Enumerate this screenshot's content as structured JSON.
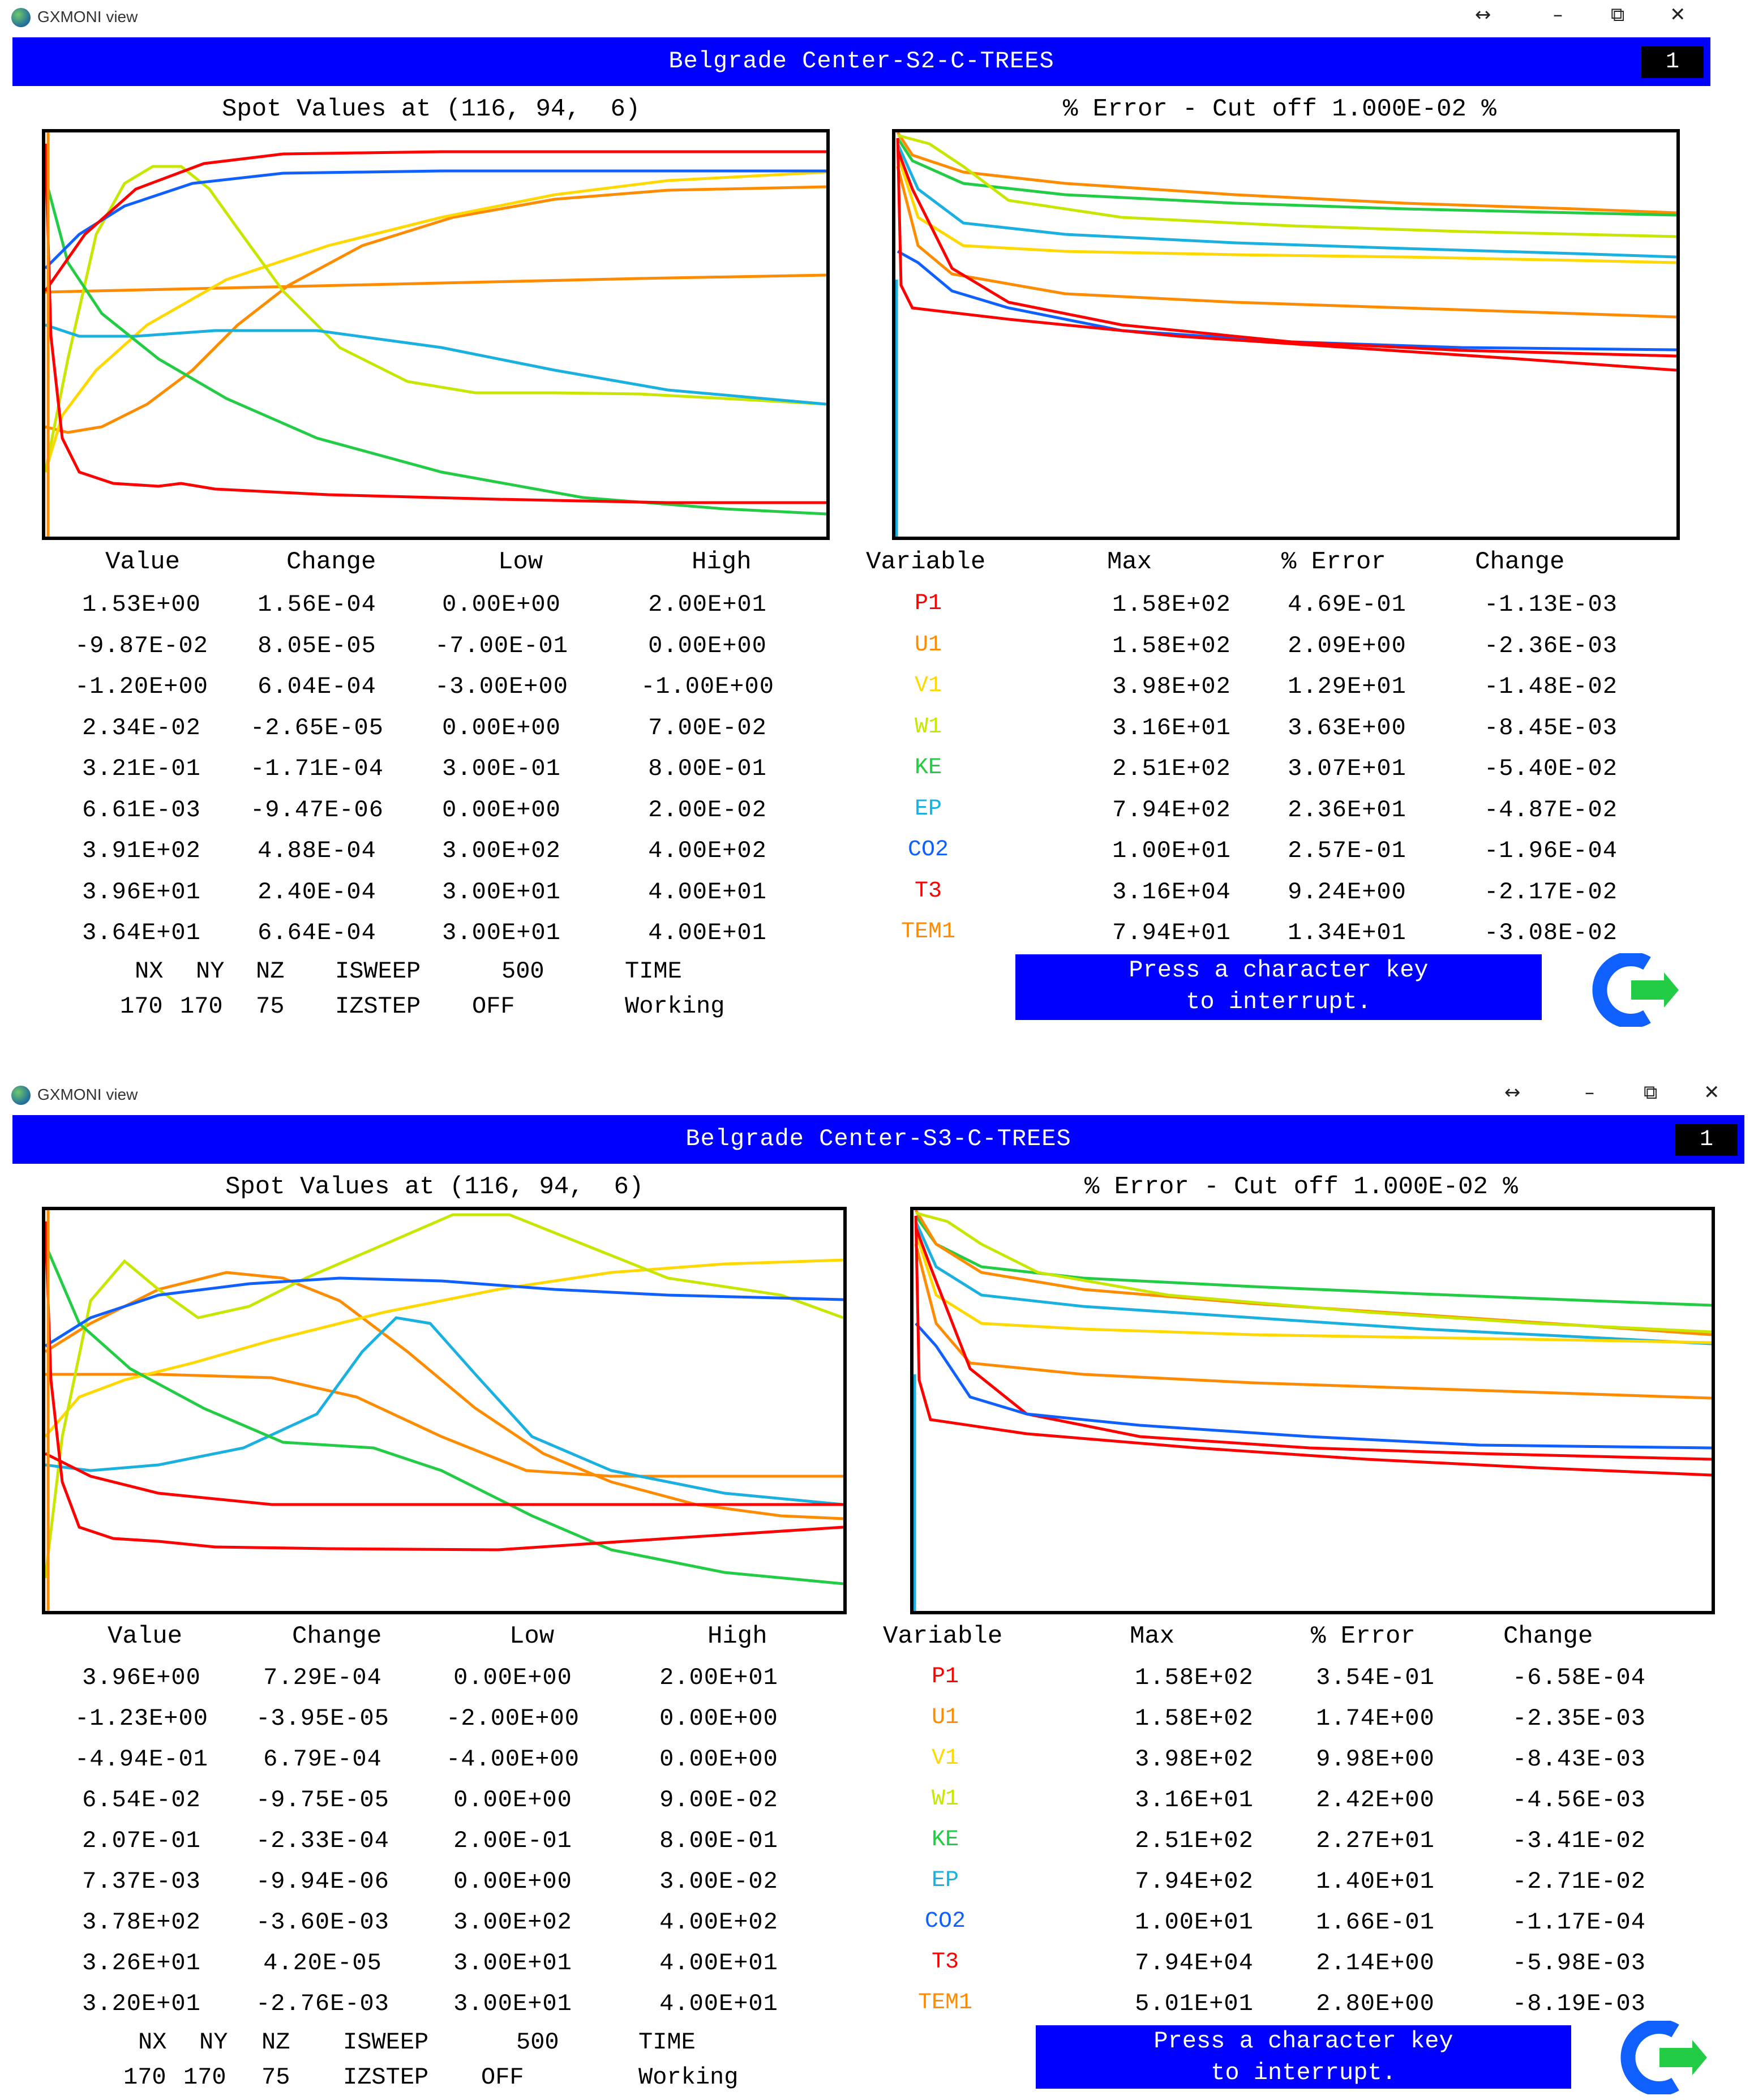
{
  "windows": [
    {
      "app_title": "GXMONI view",
      "controls": {
        "resize": "↔",
        "minimize": "–",
        "restore": "⧉",
        "close": "✕"
      },
      "banner": {
        "title": "Belgrade Center-S2-C-TREES",
        "badge": "1"
      },
      "left_plot_title": "Spot Values at (116, 94,  6)",
      "right_plot_title": "% Error - Cut off 1.000E-02 %",
      "left_headers": [
        "Value",
        "Change",
        "Low",
        "High"
      ],
      "right_headers": [
        "Variable",
        "Max",
        "% Error",
        "Change"
      ],
      "rows": [
        {
          "value": "1.53E+00",
          "change": "1.56E-04",
          "low": "0.00E+00",
          "high": "2.00E+01",
          "var": "P1",
          "max": "1.58E+02",
          "err": "4.69E-01",
          "echange": "-1.13E-03"
        },
        {
          "value": "-9.87E-02",
          "change": "8.05E-05",
          "low": "-7.00E-01",
          "high": "0.00E+00",
          "var": "U1",
          "max": "1.58E+02",
          "err": "2.09E+00",
          "echange": "-2.36E-03"
        },
        {
          "value": "-1.20E+00",
          "change": "6.04E-04",
          "low": "-3.00E+00",
          "high": "-1.00E+00",
          "var": "V1",
          "max": "3.98E+02",
          "err": "1.29E+01",
          "echange": "-1.48E-02"
        },
        {
          "value": "2.34E-02",
          "change": "-2.65E-05",
          "low": "0.00E+00",
          "high": "7.00E-02",
          "var": "W1",
          "max": "3.16E+01",
          "err": "3.63E+00",
          "echange": "-8.45E-03"
        },
        {
          "value": "3.21E-01",
          "change": "-1.71E-04",
          "low": "3.00E-01",
          "high": "8.00E-01",
          "var": "KE",
          "max": "2.51E+02",
          "err": "3.07E+01",
          "echange": "-5.40E-02"
        },
        {
          "value": "6.61E-03",
          "change": "-9.47E-06",
          "low": "0.00E+00",
          "high": "2.00E-02",
          "var": "EP",
          "max": "7.94E+02",
          "err": "2.36E+01",
          "echange": "-4.87E-02"
        },
        {
          "value": "3.91E+02",
          "change": "4.88E-04",
          "low": "3.00E+02",
          "high": "4.00E+02",
          "var": "CO2",
          "max": "1.00E+01",
          "err": "2.57E-01",
          "echange": "-1.96E-04"
        },
        {
          "value": "3.96E+01",
          "change": "2.40E-04",
          "low": "3.00E+01",
          "high": "4.00E+01",
          "var": "T3",
          "max": "3.16E+04",
          "err": "9.24E+00",
          "echange": "-2.17E-02"
        },
        {
          "value": "3.64E+01",
          "change": "6.64E-04",
          "low": "3.00E+01",
          "high": "4.00E+01",
          "var": "TEM1",
          "max": "7.94E+01",
          "err": "1.34E+01",
          "echange": "-3.08E-02"
        }
      ],
      "footer": {
        "labels": [
          "NX",
          "NY",
          "NZ",
          "ISWEEP",
          "500",
          "TIME"
        ],
        "values": [
          "170",
          "170",
          "75",
          "IZSTEP",
          "OFF",
          "Working"
        ]
      },
      "press": [
        "Press a character key",
        "to interrupt."
      ]
    },
    {
      "app_title": "GXMONI view",
      "controls": {
        "resize": "↔",
        "minimize": "–",
        "restore": "⧉",
        "close": "✕"
      },
      "banner": {
        "title": "Belgrade Center-S3-C-TREES",
        "badge": "1"
      },
      "left_plot_title": "Spot Values at (116, 94,  6)",
      "right_plot_title": "% Error - Cut off 1.000E-02 %",
      "left_headers": [
        "Value",
        "Change",
        "Low",
        "High"
      ],
      "right_headers": [
        "Variable",
        "Max",
        "% Error",
        "Change"
      ],
      "rows": [
        {
          "value": "3.96E+00",
          "change": "7.29E-04",
          "low": "0.00E+00",
          "high": "2.00E+01",
          "var": "P1",
          "max": "1.58E+02",
          "err": "3.54E-01",
          "echange": "-6.58E-04"
        },
        {
          "value": "-1.23E+00",
          "change": "-3.95E-05",
          "low": "-2.00E+00",
          "high": "0.00E+00",
          "var": "U1",
          "max": "1.58E+02",
          "err": "1.74E+00",
          "echange": "-2.35E-03"
        },
        {
          "value": "-4.94E-01",
          "change": "6.79E-04",
          "low": "-4.00E+00",
          "high": "0.00E+00",
          "var": "V1",
          "max": "3.98E+02",
          "err": "9.98E+00",
          "echange": "-8.43E-03"
        },
        {
          "value": "6.54E-02",
          "change": "-9.75E-05",
          "low": "0.00E+00",
          "high": "9.00E-02",
          "var": "W1",
          "max": "3.16E+01",
          "err": "2.42E+00",
          "echange": "-4.56E-03"
        },
        {
          "value": "2.07E-01",
          "change": "-2.33E-04",
          "low": "2.00E-01",
          "high": "8.00E-01",
          "var": "KE",
          "max": "2.51E+02",
          "err": "2.27E+01",
          "echange": "-3.41E-02"
        },
        {
          "value": "7.37E-03",
          "change": "-9.94E-06",
          "low": "0.00E+00",
          "high": "3.00E-02",
          "var": "EP",
          "max": "7.94E+02",
          "err": "1.40E+01",
          "echange": "-2.71E-02"
        },
        {
          "value": "3.78E+02",
          "change": "-3.60E-03",
          "low": "3.00E+02",
          "high": "4.00E+02",
          "var": "CO2",
          "max": "1.00E+01",
          "err": "1.66E-01",
          "echange": "-1.17E-04"
        },
        {
          "value": "3.26E+01",
          "change": "4.20E-05",
          "low": "3.00E+01",
          "high": "4.00E+01",
          "var": "T3",
          "max": "7.94E+04",
          "err": "2.14E+00",
          "echange": "-5.98E-03"
        },
        {
          "value": "3.20E+01",
          "change": "-2.76E-03",
          "low": "3.00E+01",
          "high": "4.00E+01",
          "var": "TEM1",
          "max": "5.01E+01",
          "err": "2.80E+00",
          "echange": "-8.19E-03"
        }
      ],
      "footer": {
        "labels": [
          "NX",
          "NY",
          "NZ",
          "ISWEEP",
          "500",
          "TIME"
        ],
        "values": [
          "170",
          "170",
          "75",
          "IZSTEP",
          "OFF",
          "Working"
        ]
      },
      "press": [
        "Press a character key",
        "to interrupt."
      ]
    }
  ],
  "variable_colors": {
    "P1": "#ff0000",
    "U1": "#ff8c00",
    "V1": "#ffd800",
    "W1": "#c8e600",
    "KE": "#22cc44",
    "EP": "#1ab0e0",
    "CO2": "#1060ff",
    "T3": "#ff0000",
    "TEM1": "#ff8c00"
  },
  "banner_color": "#0000ff"
}
